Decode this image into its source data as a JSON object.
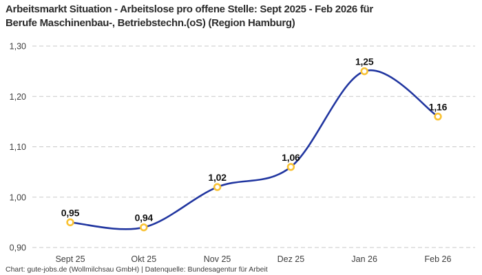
{
  "header": {
    "title_lines": [
      "Arbeitsmarkt Situation - Arbeitslose pro offene Stelle: Sept 2025 - Feb 2026 für",
      "Berufe Maschinenbau-, Betriebstechn.(oS) (Region Hamburg)"
    ]
  },
  "footer": {
    "credit": "Chart: gute-jobs.de (Wollmilchsau GmbH) | Datenquelle: Bundesagentur für Arbeit"
  },
  "chart_data": {
    "type": "line",
    "title": "Arbeitsmarkt Situation - Arbeitslose pro offene Stelle: Sept 2025 - Feb 2026 für Berufe Maschinenbau-, Betriebstechn.(oS) (Region Hamburg)",
    "categories": [
      "Sept 25",
      "Okt 25",
      "Nov 25",
      "Dez 25",
      "Jan 26",
      "Feb 26"
    ],
    "values": [
      0.95,
      0.94,
      1.02,
      1.06,
      1.25,
      1.16
    ],
    "point_labels": [
      "0,95",
      "0,94",
      "1,02",
      "1,06",
      "1,25",
      "1,16"
    ],
    "y_ticks": [
      0.9,
      1.0,
      1.1,
      1.2,
      1.3
    ],
    "y_tick_labels": [
      "0,90",
      "1,00",
      "1,10",
      "1,20",
      "1,30"
    ],
    "ylim": [
      0.9,
      1.3
    ],
    "xlabel": "",
    "ylabel": "",
    "grid": "dashed-horizontal",
    "legend": "none",
    "smooth": true,
    "line_color": "#2136a0",
    "marker_stroke": "#f9c233",
    "marker_fill": "#ffffff",
    "grid_color": "#c9c9c9"
  }
}
